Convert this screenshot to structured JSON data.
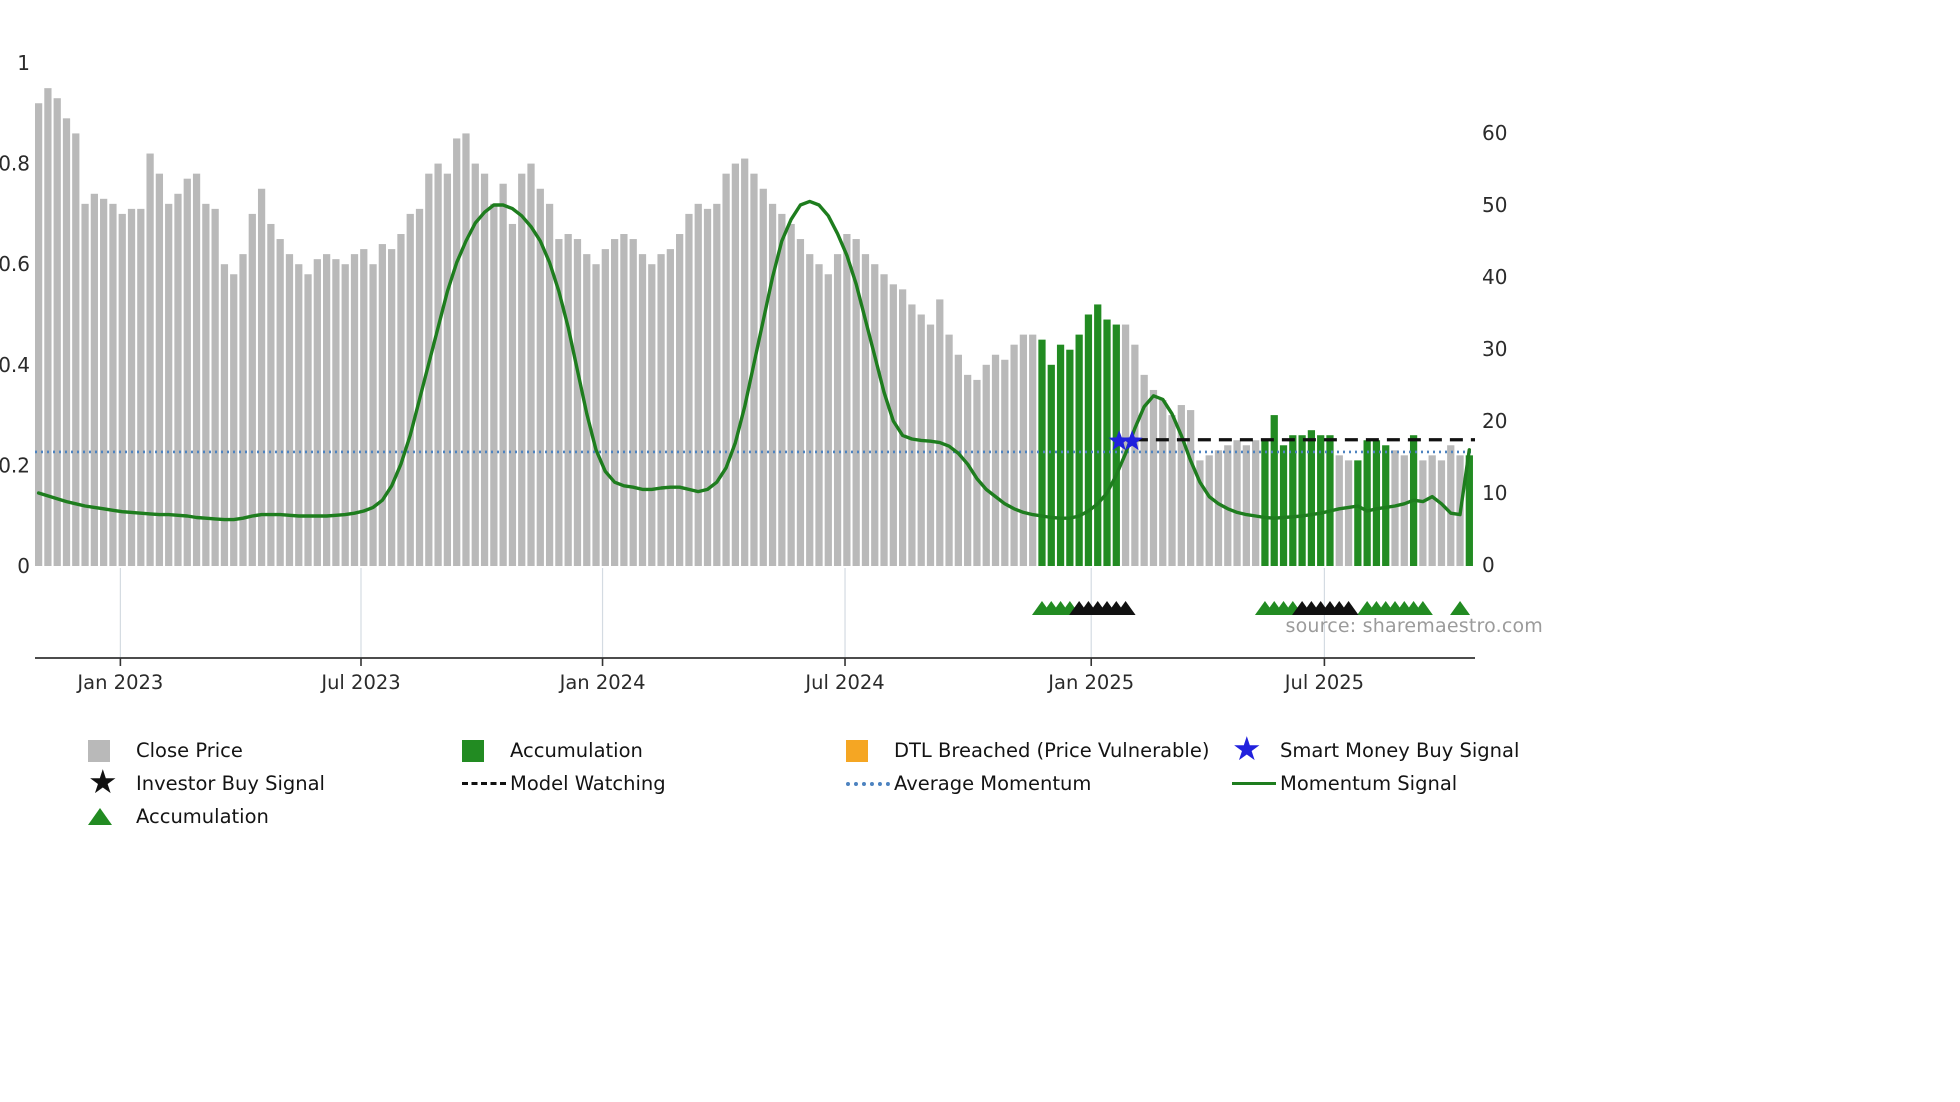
{
  "source_text": "source: sharemaestro.com",
  "colors": {
    "close_price": "#b9b9b9",
    "accumulation": "#228B22",
    "momentum_signal": "#1e7d1e",
    "average_momentum": "#4d83c0",
    "model_watching": "#111111",
    "smart_money_buy": "#2121dd",
    "investor_buy": "#111111",
    "dtl_breached": "#F5A623",
    "axis_text": "#2b2b2b",
    "source_text_color": "#9b9b9b",
    "grid_faint": "#d4dbe2"
  },
  "legend": {
    "items": [
      {
        "label": "Close Price",
        "marker": "square",
        "color_key": "close_price"
      },
      {
        "label": "Accumulation",
        "marker": "square",
        "color_key": "accumulation"
      },
      {
        "label": "DTL Breached (Price Vulnerable)",
        "marker": "square",
        "color_key": "dtl_breached"
      },
      {
        "label": "Smart Money Buy Signal",
        "marker": "star",
        "color_key": "smart_money_buy"
      },
      {
        "label": "Investor Buy Signal",
        "marker": "star",
        "color_key": "investor_buy"
      },
      {
        "label": "Model Watching",
        "marker": "dashed-line",
        "color_key": "model_watching"
      },
      {
        "label": "Average Momentum",
        "marker": "dotted-line",
        "color_key": "average_momentum"
      },
      {
        "label": "Momentum Signal",
        "marker": "solid-line",
        "color_key": "momentum_signal"
      },
      {
        "label": "Accumulation",
        "marker": "triangle",
        "color_key": "accumulation"
      }
    ]
  },
  "chart_data": {
    "type": "bar",
    "title": "",
    "left_axis": {
      "label": "",
      "ticks": [
        0,
        0.2,
        0.4,
        0.6,
        0.8,
        1
      ],
      "range": [
        0,
        1.05
      ]
    },
    "right_axis": {
      "label": "",
      "ticks": [
        0,
        10,
        20,
        30,
        40,
        50,
        60
      ],
      "range": [
        0,
        74
      ]
    },
    "x_axis": {
      "tick_labels": [
        "Jan 2023",
        "Jul 2023",
        "Jan 2024",
        "Jul 2024",
        "Jan 2025",
        "Jul 2025"
      ],
      "tick_indices": [
        8.8,
        34.7,
        60.7,
        86.8,
        113.3,
        138.4
      ]
    },
    "series_names": {
      "bars": "Close Price (normalised, left axis)",
      "line": "Momentum Signal (right axis)"
    },
    "close_price": [
      0.92,
      0.95,
      0.93,
      0.89,
      0.86,
      0.72,
      0.74,
      0.73,
      0.72,
      0.7,
      0.71,
      0.71,
      0.82,
      0.78,
      0.72,
      0.74,
      0.77,
      0.78,
      0.72,
      0.71,
      0.6,
      0.58,
      0.62,
      0.7,
      0.75,
      0.68,
      0.65,
      0.62,
      0.6,
      0.58,
      0.61,
      0.62,
      0.61,
      0.6,
      0.62,
      0.63,
      0.6,
      0.64,
      0.63,
      0.66,
      0.7,
      0.71,
      0.78,
      0.8,
      0.78,
      0.85,
      0.86,
      0.8,
      0.78,
      0.72,
      0.76,
      0.68,
      0.78,
      0.8,
      0.75,
      0.72,
      0.65,
      0.66,
      0.65,
      0.62,
      0.6,
      0.63,
      0.65,
      0.66,
      0.65,
      0.62,
      0.6,
      0.62,
      0.63,
      0.66,
      0.7,
      0.72,
      0.71,
      0.72,
      0.78,
      0.8,
      0.81,
      0.78,
      0.75,
      0.72,
      0.7,
      0.68,
      0.65,
      0.62,
      0.6,
      0.58,
      0.62,
      0.66,
      0.65,
      0.62,
      0.6,
      0.58,
      0.56,
      0.55,
      0.52,
      0.5,
      0.48,
      0.53,
      0.46,
      0.42,
      0.38,
      0.37,
      0.4,
      0.42,
      0.41,
      0.44,
      0.46,
      0.46,
      0.45,
      0.4,
      0.44,
      0.43,
      0.46,
      0.5,
      0.52,
      0.49,
      0.48,
      0.48,
      0.44,
      0.38,
      0.35,
      0.33,
      0.3,
      0.32,
      0.31,
      0.21,
      0.22,
      0.23,
      0.24,
      0.25,
      0.24,
      0.25,
      0.25,
      0.3,
      0.24,
      0.26,
      0.26,
      0.27,
      0.26,
      0.26,
      0.22,
      0.21,
      0.21,
      0.25,
      0.25,
      0.24,
      0.23,
      0.22,
      0.26,
      0.21,
      0.22,
      0.21,
      0.24,
      0.22,
      0.22
    ],
    "accumulation_bar_indices": [
      108,
      109,
      110,
      111,
      112,
      113,
      114,
      115,
      116,
      132,
      133,
      134,
      135,
      136,
      137,
      138,
      139,
      142,
      143,
      144,
      145,
      148,
      154
    ],
    "momentum_signal": [
      10,
      9.6,
      9.2,
      8.8,
      8.5,
      8.2,
      8.0,
      7.8,
      7.6,
      7.4,
      7.3,
      7.2,
      7.1,
      7.0,
      7.0,
      6.9,
      6.8,
      6.6,
      6.5,
      6.4,
      6.3,
      6.3,
      6.5,
      6.8,
      7.0,
      7.0,
      7.0,
      6.9,
      6.8,
      6.8,
      6.8,
      6.8,
      6.9,
      7.0,
      7.2,
      7.5,
      8.0,
      9.0,
      11.0,
      14.0,
      18.0,
      23.0,
      28.0,
      33.0,
      38.0,
      42.0,
      45.0,
      47.5,
      49.0,
      50.0,
      50.0,
      49.5,
      48.5,
      47.0,
      45.0,
      42.0,
      38.0,
      33.0,
      27.0,
      21.0,
      16.0,
      13.0,
      11.5,
      11.0,
      10.8,
      10.5,
      10.5,
      10.7,
      10.8,
      10.8,
      10.5,
      10.2,
      10.5,
      11.5,
      13.5,
      17.0,
      22.0,
      28.0,
      34.0,
      40.0,
      45.0,
      48.0,
      50.0,
      50.5,
      50.0,
      48.5,
      46.0,
      43.0,
      39.0,
      34.0,
      29.0,
      24.0,
      20.0,
      18.0,
      17.5,
      17.3,
      17.2,
      17.0,
      16.5,
      15.5,
      14.0,
      12.0,
      10.5,
      9.5,
      8.5,
      7.8,
      7.3,
      7.0,
      6.8,
      6.6,
      6.5,
      6.5,
      6.8,
      7.5,
      8.5,
      10.0,
      12.5,
      15.5,
      19.0,
      22.0,
      23.5,
      23.0,
      21.0,
      18.0,
      14.5,
      11.5,
      9.5,
      8.5,
      7.8,
      7.3,
      7.0,
      6.8,
      6.6,
      6.5,
      6.6,
      6.7,
      6.8,
      7.0,
      7.2,
      7.5,
      7.8,
      8.0,
      8.2,
      7.5,
      7.8,
      8.0,
      8.2,
      8.5,
      9.0,
      8.8,
      9.5,
      8.5,
      7.2,
      7.0,
      16.0
    ],
    "average_momentum_level": 15.7,
    "model_watching": {
      "level": 17.4,
      "start_index": 118,
      "end_index": 154
    },
    "smart_money_buy_signals": [
      {
        "index": 116.3,
        "level": 17.2
      },
      {
        "index": 117.7,
        "level": 17.2
      }
    ],
    "accumulation_marker_indices": [
      108,
      109,
      110,
      111,
      132,
      133,
      134,
      135,
      143,
      144,
      145,
      146,
      147,
      148,
      149,
      153
    ],
    "investor_buy_marker_indices": [
      112,
      113,
      114,
      115,
      116,
      117,
      136,
      137,
      138,
      139,
      140,
      141
    ]
  }
}
